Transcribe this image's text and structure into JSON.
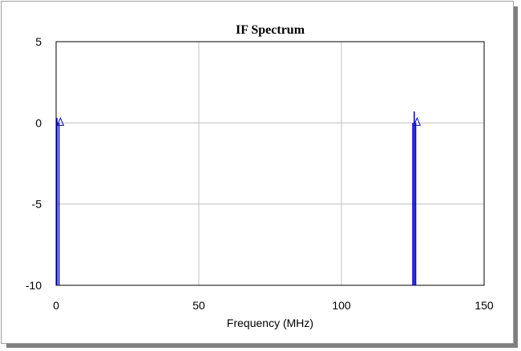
{
  "chart_data": {
    "type": "line",
    "title": "IF Spectrum",
    "xlabel": "Frequency (MHz)",
    "ylabel": "",
    "xlim": [
      0,
      150
    ],
    "ylim": [
      -10,
      5
    ],
    "x_ticks": [
      "0",
      "50",
      "100",
      "150"
    ],
    "y_ticks": [
      "5",
      "0",
      "-5",
      "-10"
    ],
    "x_tick_values": [
      0,
      50,
      100,
      150
    ],
    "y_tick_values": [
      5,
      0,
      -5,
      -10
    ],
    "grid": true,
    "series": [
      {
        "color": "#0000cc",
        "style": "stems",
        "stems": [
          {
            "x": 0.3,
            "y": 0.3
          },
          {
            "x": 1.0,
            "y": 0.0
          },
          {
            "x": 125.0,
            "y": 0.0
          },
          {
            "x": 125.5,
            "y": 0.7
          },
          {
            "x": 126.0,
            "y": 0.0
          }
        ],
        "markers": [
          {
            "x": 1.5,
            "y": 0.0,
            "shape": "triangle"
          },
          {
            "x": 126.5,
            "y": 0.0,
            "shape": "triangle"
          }
        ]
      }
    ],
    "colors": {
      "grid": "#c0c0c0",
      "axes": "#000000",
      "series": "#0000cc"
    }
  }
}
